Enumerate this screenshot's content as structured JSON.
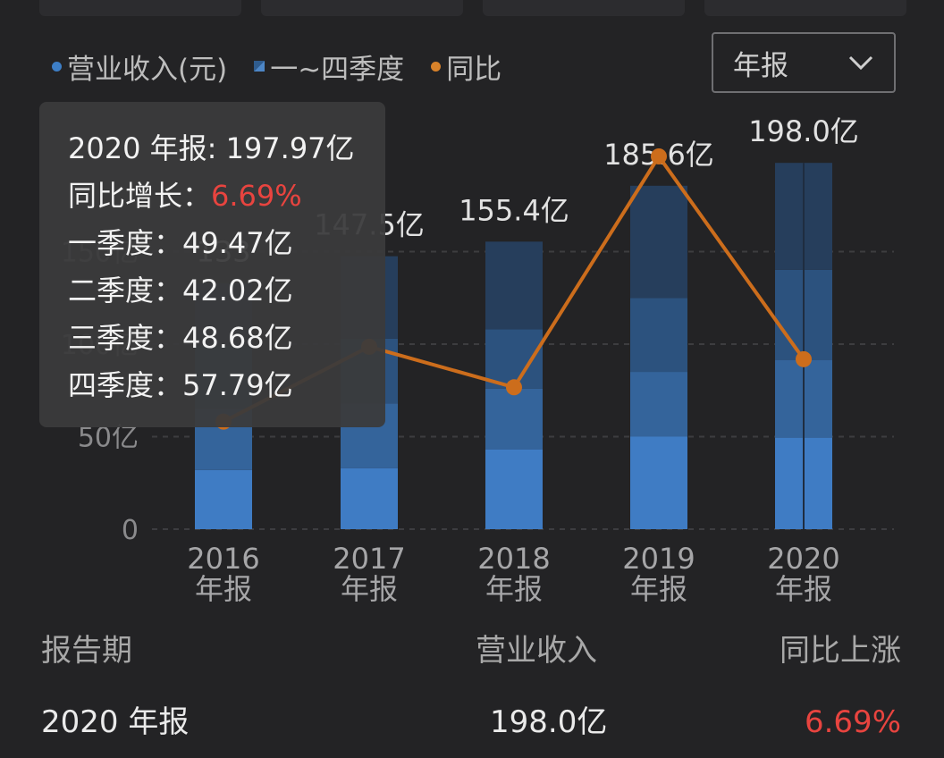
{
  "legend": [
    {
      "label": "营业收入(元)",
      "kind": "dot",
      "color": "#3d7ec6"
    },
    {
      "label": "一~四季度",
      "kind": "square",
      "color": "#3d7ec6"
    },
    {
      "label": "同比",
      "kind": "dot",
      "color": "#d8822a"
    }
  ],
  "dropdown": {
    "value": "年报",
    "icon": "chevron-down-icon"
  },
  "tooltip": {
    "title": "2020 年报: 197.97亿",
    "yoy_label": "同比增长：",
    "yoy_value": "6.69%",
    "q1": "一季度：49.47亿",
    "q2": "二季度：42.02亿",
    "q3": "三季度：48.68亿",
    "q4": "四季度：57.79亿"
  },
  "chart_data": {
    "type": "bar",
    "categories": [
      "2016\n年报",
      "2017\n年报",
      "2018\n年报",
      "2019\n年报",
      "2020\n年报"
    ],
    "series": [
      {
        "name": "一季度",
        "values": [
          32,
          33,
          43,
          50,
          49.47
        ]
      },
      {
        "name": "二季度",
        "values": [
          33,
          35,
          33,
          35,
          42.02
        ]
      },
      {
        "name": "三季度",
        "values": [
          34,
          35,
          32,
          40,
          48.68
        ]
      },
      {
        "name": "四季度",
        "values": [
          34,
          44.5,
          47.4,
          60.6,
          57.79
        ]
      }
    ],
    "totals": [
      133,
      147.5,
      155.4,
      185.6,
      198.0
    ],
    "total_labels": [
      "133",
      "147.5亿",
      "155.4亿",
      "185.6亿",
      "198.0亿"
    ],
    "yoy_line": {
      "name": "同比",
      "values": [
        15,
        39,
        26,
        100,
        35
      ]
    },
    "ylim": [
      0,
      200
    ],
    "yticks": [
      "0",
      "50亿",
      "100亿",
      "150亿"
    ],
    "colors": {
      "q1": "#3f7cc4",
      "q2": "#34649b",
      "q3": "#2c527e",
      "q4": "#263e5c",
      "line": "#cc6d1c"
    }
  },
  "table": {
    "headers": [
      "报告期",
      "营业收入",
      "同比上涨"
    ],
    "row": {
      "period": "2020 年报",
      "revenue": "198.0亿",
      "yoy": "6.69%"
    }
  }
}
